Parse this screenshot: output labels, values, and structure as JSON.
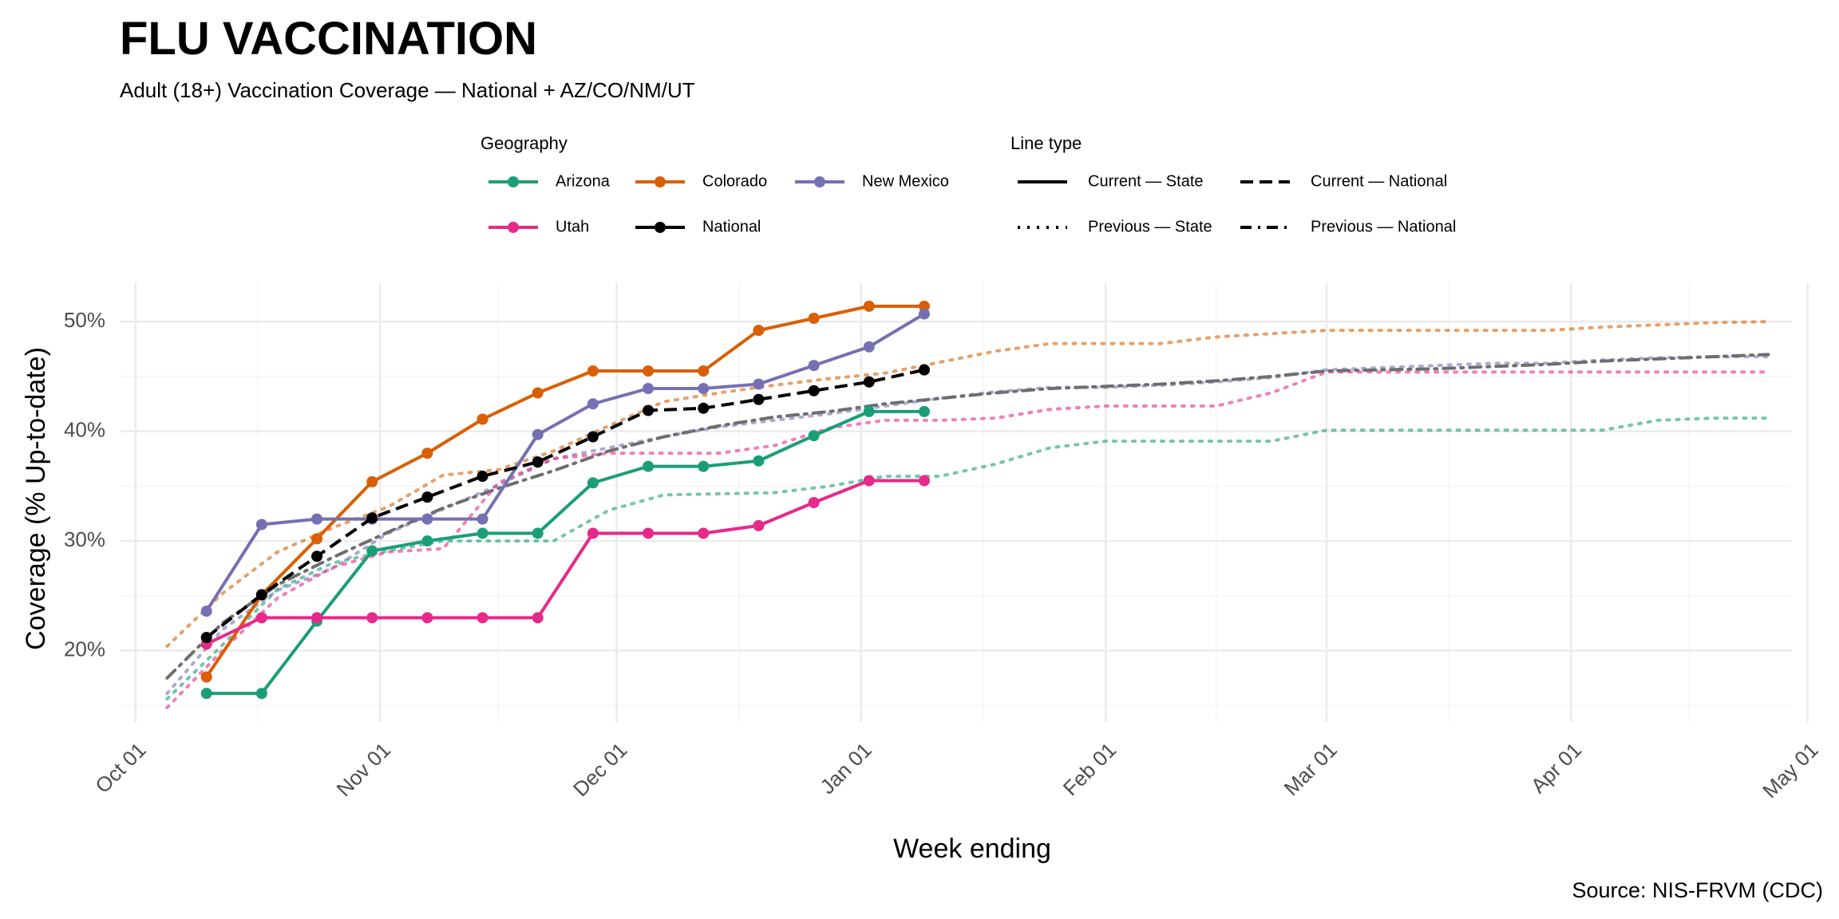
{
  "chart_data": {
    "type": "line",
    "title": "FLU VACCINATION",
    "subtitle": "Adult (18+) Vaccination Coverage — National + AZ/CO/NM/UT",
    "xlabel": "Week ending",
    "ylabel": "Coverage (% Up-to-date)",
    "caption": "Source: NIS-FRVM (CDC)",
    "x_range_days": [
      -2,
      210
    ],
    "x_date_origin": "Oct 01",
    "ylim": [
      13.5,
      53.5
    ],
    "x_ticks": [
      {
        "day": 0,
        "label": "Oct 01"
      },
      {
        "day": 31,
        "label": "Nov 01"
      },
      {
        "day": 61,
        "label": "Dec 01"
      },
      {
        "day": 92,
        "label": "Jan 01"
      },
      {
        "day": 123,
        "label": "Feb 01"
      },
      {
        "day": 151,
        "label": "Mar 01"
      },
      {
        "day": 182,
        "label": "Apr 01"
      },
      {
        "day": 212,
        "label": "May 01"
      }
    ],
    "y_ticks": [
      {
        "value": 20,
        "label": "20%"
      },
      {
        "value": 30,
        "label": "30%"
      },
      {
        "value": 40,
        "label": "40%"
      },
      {
        "value": 50,
        "label": "50%"
      }
    ],
    "grid": true,
    "colors": {
      "Arizona": "#1b9e77",
      "Colorado": "#d95f02",
      "New Mexico": "#7570b3",
      "Utah": "#e7298a",
      "National": "#000000",
      "National Previous": "#6e6e6e",
      "grid_major": "#ebebeb",
      "grid_minor": "#f5f5f5"
    },
    "legend": {
      "position": "top",
      "geography_title": "Geography",
      "geography_items": [
        "Arizona",
        "Colorado",
        "New Mexico",
        "Utah",
        "National"
      ],
      "linetype_title": "Line type",
      "linetype_items": [
        {
          "label": "Current — State",
          "style": "solid"
        },
        {
          "label": "Current — National",
          "style": "dashed"
        },
        {
          "label": "Previous — State",
          "style": "dotted"
        },
        {
          "label": "Previous — National",
          "style": "dotdash"
        }
      ]
    },
    "current_weeks_day": [
      9,
      16,
      23,
      30,
      37,
      44,
      51,
      58,
      65,
      72,
      79,
      86,
      93,
      100
    ],
    "series_current": [
      {
        "name": "Arizona",
        "style": "solid",
        "values": [
          16.1,
          16.1,
          22.7,
          29.1,
          30.0,
          30.7,
          30.7,
          35.3,
          36.8,
          36.8,
          37.3,
          39.6,
          41.8,
          41.8
        ]
      },
      {
        "name": "Colorado",
        "style": "solid",
        "values": [
          17.6,
          25.1,
          30.2,
          35.4,
          38.0,
          41.1,
          43.5,
          45.5,
          45.5,
          45.5,
          49.2,
          50.3,
          51.4,
          51.4
        ]
      },
      {
        "name": "New Mexico",
        "style": "solid",
        "values": [
          23.6,
          31.5,
          32.0,
          32.0,
          32.0,
          32.0,
          39.7,
          42.5,
          43.9,
          43.9,
          44.3,
          46.0,
          47.7,
          50.7
        ]
      },
      {
        "name": "Utah",
        "style": "solid",
        "values": [
          20.6,
          23.0,
          23.0,
          23.0,
          23.0,
          23.0,
          23.0,
          30.7,
          30.7,
          30.7,
          31.4,
          33.5,
          35.5,
          35.5
        ]
      },
      {
        "name": "National",
        "style": "dashed",
        "values": [
          21.2,
          25.1,
          28.6,
          32.1,
          34.0,
          35.9,
          37.2,
          39.5,
          41.9,
          42.1,
          42.9,
          43.7,
          44.5,
          45.6
        ]
      }
    ],
    "previous_weeks_day": [
      4,
      11,
      18,
      25,
      32,
      39,
      46,
      53,
      60,
      67,
      74,
      81,
      88,
      95,
      102,
      109,
      116,
      123,
      130,
      137,
      144,
      151,
      158,
      165,
      172,
      179,
      186,
      193,
      200,
      207
    ],
    "series_previous": [
      {
        "name": "Arizona",
        "style": "dotted",
        "values": [
          15.6,
          20.5,
          25.6,
          28.0,
          29.1,
          30.0,
          30.0,
          30.0,
          32.8,
          34.2,
          34.3,
          34.4,
          35.0,
          35.9,
          35.9,
          37.0,
          38.5,
          39.1,
          39.1,
          39.1,
          39.1,
          40.1,
          40.1,
          40.1,
          40.1,
          40.1,
          40.1,
          41.0,
          41.2,
          41.2
        ]
      },
      {
        "name": "Colorado",
        "style": "dotted",
        "values": [
          20.4,
          25.2,
          29.0,
          31.2,
          33.1,
          36.0,
          36.5,
          38.2,
          40.5,
          42.7,
          43.5,
          44.2,
          44.8,
          45.3,
          46.3,
          47.3,
          48.0,
          48.0,
          48.0,
          48.6,
          48.9,
          49.2,
          49.2,
          49.2,
          49.2,
          49.2,
          49.5,
          49.7,
          49.9,
          50.0
        ]
      },
      {
        "name": "New Mexico",
        "style": "dotted",
        "values": [
          16.1,
          21.9,
          25.5,
          27.5,
          30.7,
          32.9,
          35.1,
          37.5,
          38.5,
          39.5,
          40.4,
          41.0,
          41.6,
          42.3,
          43.0,
          43.6,
          44.0,
          44.0,
          44.2,
          44.5,
          44.9,
          45.6,
          45.8,
          46.0,
          46.2,
          46.2,
          46.5,
          46.7,
          46.8,
          46.8
        ]
      },
      {
        "name": "Utah",
        "style": "dotted",
        "values": [
          14.8,
          20.0,
          24.8,
          27.6,
          29.0,
          29.3,
          35.3,
          37.5,
          38.0,
          38.0,
          38.0,
          38.7,
          40.3,
          41.0,
          41.0,
          41.2,
          42.0,
          42.3,
          42.3,
          42.3,
          43.5,
          45.4,
          45.4,
          45.4,
          45.4,
          45.4,
          45.4,
          45.4,
          45.4,
          45.4
        ]
      },
      {
        "name": "National",
        "style": "dotdash",
        "values": [
          17.5,
          22.5,
          26.0,
          28.5,
          30.8,
          33.0,
          34.8,
          36.4,
          38.2,
          39.5,
          40.5,
          41.3,
          41.8,
          42.5,
          43.0,
          43.5,
          43.9,
          44.1,
          44.3,
          44.6,
          45.0,
          45.5,
          45.6,
          45.7,
          45.9,
          46.1,
          46.4,
          46.6,
          46.8,
          47.0
        ]
      }
    ]
  }
}
